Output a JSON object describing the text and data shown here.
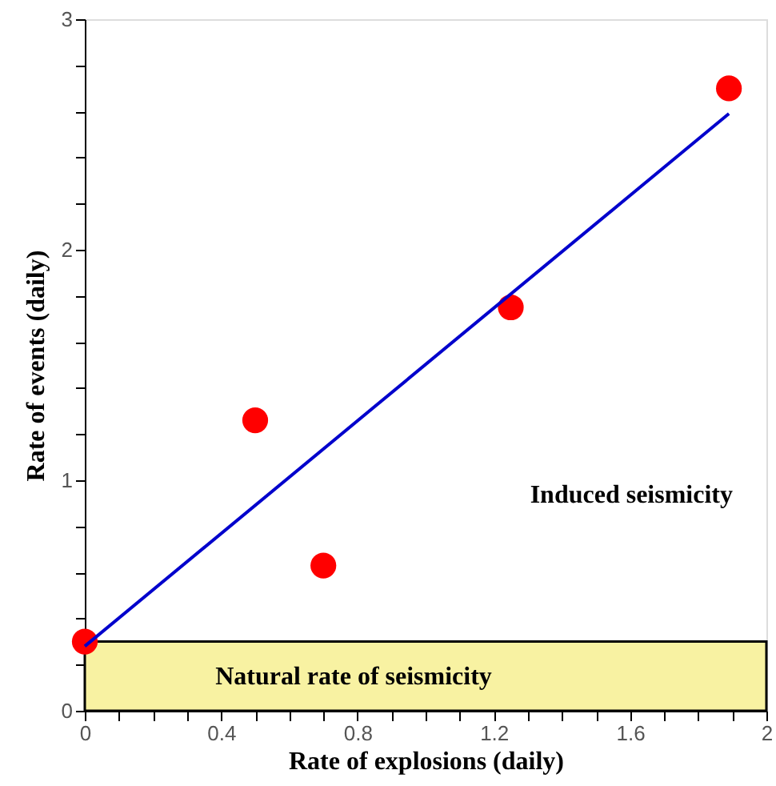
{
  "chart_data": {
    "type": "scatter",
    "xlabel": "Rate of explosions (daily)",
    "ylabel": "Rate of events (daily)",
    "series": [
      {
        "color": "#ff0000",
        "marker": "circle",
        "x": [
          0,
          0.5,
          0.7,
          1.25,
          1.89
        ],
        "values": [
          0.3,
          1.26,
          0.63,
          1.75,
          2.7
        ]
      },
      {
        "type": "line",
        "color": "#0000cc",
        "marker": "none",
        "x": [
          0,
          1.89
        ],
        "values": [
          0.28,
          2.59
        ]
      }
    ],
    "bands": [
      {
        "axis": "y",
        "from": 0,
        "to": 0.3,
        "label": "Natural rate of seismicity",
        "color": "#f8f2a2"
      }
    ],
    "annotations": [
      "Induced seismicity"
    ],
    "xlim": [
      0,
      2
    ],
    "ylim": [
      0,
      3
    ],
    "xticks": [
      0,
      {
        "value": 0.1,
        "label": null
      },
      {
        "value": 0.2,
        "label": null
      },
      {
        "value": 0.3,
        "label": null
      },
      0.4,
      {
        "value": 0.5,
        "label": null
      },
      {
        "value": 0.6,
        "label": null
      },
      {
        "value": 0.7,
        "label": null
      },
      0.8,
      {
        "value": 0.9,
        "label": null
      },
      {
        "value": 1.0,
        "label": null
      },
      {
        "value": 1.1,
        "label": null
      },
      1.2,
      {
        "value": 1.3,
        "label": null
      },
      {
        "value": 1.4,
        "label": null
      },
      {
        "value": 1.5,
        "label": null
      },
      1.6,
      {
        "value": 1.7,
        "label": null
      },
      {
        "value": 1.8,
        "label": null
      },
      {
        "value": 1.9,
        "label": null
      },
      2
    ],
    "yticks": [
      0,
      {
        "value": 0.2,
        "label": null
      },
      {
        "value": 0.4,
        "label": null
      },
      {
        "value": 0.6,
        "label": null
      },
      {
        "value": 0.8,
        "label": null
      },
      1,
      {
        "value": 1.2,
        "label": null
      },
      {
        "value": 1.4,
        "label": null
      },
      {
        "value": 1.6,
        "label": null
      },
      {
        "value": 1.8,
        "label": null
      },
      2,
      {
        "value": 2.2,
        "label": null
      },
      {
        "value": 2.4,
        "label": null
      },
      {
        "value": 2.6,
        "label": null
      },
      {
        "value": 2.8,
        "label": null
      },
      3
    ]
  }
}
